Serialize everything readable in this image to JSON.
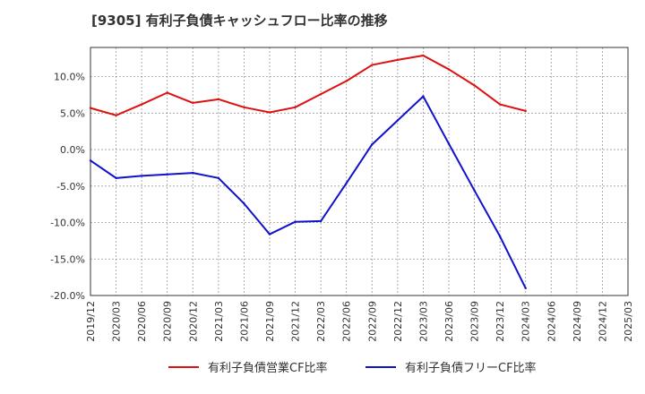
{
  "title": "[9305]  有利子負債キャッシュフロー比率の推移",
  "colors": {
    "series1": "#dd1111",
    "series2": "#1111cc",
    "grid": "#999999",
    "axis": "#333333"
  },
  "chart_data": {
    "type": "line",
    "title": "[9305]  有利子負債キャッシュフロー比率の推移",
    "xlabel": "",
    "ylabel": "",
    "x": [
      "2019/12",
      "2020/03",
      "2020/06",
      "2020/09",
      "2020/12",
      "2021/03",
      "2021/06",
      "2021/09",
      "2021/12",
      "2022/03",
      "2022/06",
      "2022/09",
      "2022/12",
      "2023/03",
      "2023/06",
      "2023/09",
      "2023/12",
      "2024/03",
      "2024/06",
      "2024/09",
      "2024/12",
      "2025/03"
    ],
    "ylim": [
      -20,
      14
    ],
    "yticks": [
      10,
      5,
      0,
      -5,
      -10,
      -15,
      -20
    ],
    "ytick_labels": [
      "10.0%",
      "5.0%",
      "0.0%",
      "-5.0%",
      "-10.0%",
      "-15.0%",
      "-20.0%"
    ],
    "grid": true,
    "legend_position": "bottom",
    "series": [
      {
        "name": "有利子負債営業CF比率",
        "color": "#dd1111",
        "values": [
          5.7,
          4.7,
          6.2,
          7.8,
          6.4,
          6.9,
          5.8,
          5.1,
          5.8,
          7.6,
          9.4,
          11.6,
          12.3,
          12.9,
          11.0,
          8.8,
          6.2,
          5.3,
          null,
          null,
          null,
          null
        ]
      },
      {
        "name": "有利子負債フリーCF比率",
        "color": "#1111cc",
        "values": [
          -1.5,
          -3.9,
          -3.6,
          -3.4,
          -3.2,
          -3.9,
          -7.4,
          -11.6,
          -9.9,
          -9.8,
          -4.6,
          0.7,
          4.0,
          7.3,
          0.8,
          -5.6,
          -11.9,
          -19.0,
          null,
          null,
          null,
          null
        ]
      }
    ]
  }
}
